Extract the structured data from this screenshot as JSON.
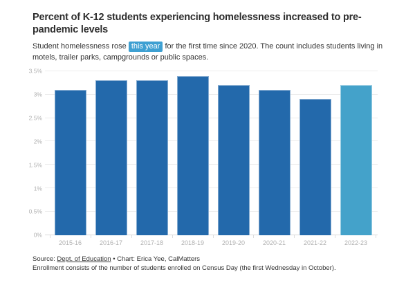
{
  "header": {
    "title": "Percent of K-12 students experiencing homelessness increased to pre-pandemic levels",
    "subtitle": {
      "before": "Student homelessness rose ",
      "highlight": "this year",
      "after": " for the first time since 2020. The count includes students living in motels, trailer parks, campgrounds or public spaces."
    }
  },
  "chart_data": {
    "type": "bar",
    "title": "Percent of K-12 students experiencing homelessness increased to pre-pandemic levels",
    "categories": [
      "2015-16",
      "2016-17",
      "2017-18",
      "2018-19",
      "2019-20",
      "2020-21",
      "2021-22",
      "2022-23"
    ],
    "values": [
      3.1,
      3.3,
      3.3,
      3.4,
      3.2,
      3.1,
      2.9,
      3.2
    ],
    "highlighted_category": "2022-23",
    "xlabel": "",
    "ylabel": "",
    "ylim": [
      0,
      3.5
    ],
    "y_ticks": [
      "0%",
      "0.5%",
      "1%",
      "1.5%",
      "2%",
      "2.5%",
      "3%",
      "3.5%"
    ],
    "grid": true,
    "legend": "none",
    "bar_color": "#2369ab",
    "highlight_color": "#44a2ca"
  },
  "colors": {
    "accent_highlight": "#3ea0d2",
    "grid": "#ececec",
    "baseline": "#d9d9d9",
    "axis_text": "#b0b0b0"
  },
  "footer": {
    "source_prefix": "Source: ",
    "source_link": "Dept. of Education",
    "source_rest": " • Chart: Erica Yee, CalMatters",
    "note": "Enrollment consists of the number of students enrolled on Census Day (the first Wednesday in October)."
  }
}
